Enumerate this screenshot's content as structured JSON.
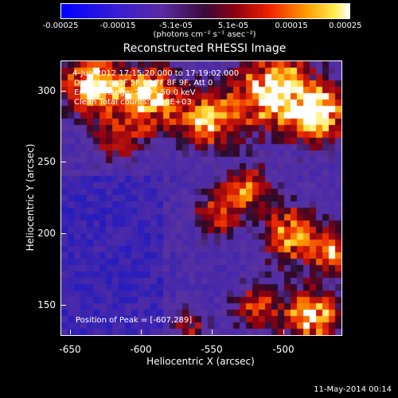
{
  "colorbar": {
    "ticks": [
      "-0.00025",
      "-0.00015",
      "-5.1e-05",
      "5.1e-05",
      "0.00015",
      "0.00025"
    ],
    "unit": "(photons cm⁻² s⁻¹ asec⁻²)"
  },
  "chart_data": {
    "type": "heatmap",
    "title": "Reconstructed RHESSI Image",
    "xlabel": "Heliocentric X (arcsec)",
    "ylabel": "Heliocentric Y (arcsec)",
    "xlim": [
      -655,
      -537
    ],
    "ylim": [
      130,
      322
    ],
    "xticks": [
      "-650",
      "-600",
      "-550",
      "-500"
    ],
    "yticks": [
      "300",
      "250",
      "200",
      "150"
    ],
    "clim": [
      -0.00025,
      0.00025
    ],
    "colormap": "rhessi-blue-purple-red-yellow-white",
    "annotations": {
      "time": "4-Jun-2012 17:15:20.000 to 17:19:02.000",
      "detectors": "Detectors: 3F 5F 6F 7F 8F 9F, Att 0",
      "energy": "Energy Range: 25.0 - 50.0 keV",
      "clean": "Clean    Total counts: 3.48E+03",
      "peak": "Position of Peak = [-607,289]"
    }
  },
  "footer": {
    "date": "11-May-2014 00:14"
  },
  "colors": {
    "background": "#000000",
    "foreground": "#ffffff"
  }
}
